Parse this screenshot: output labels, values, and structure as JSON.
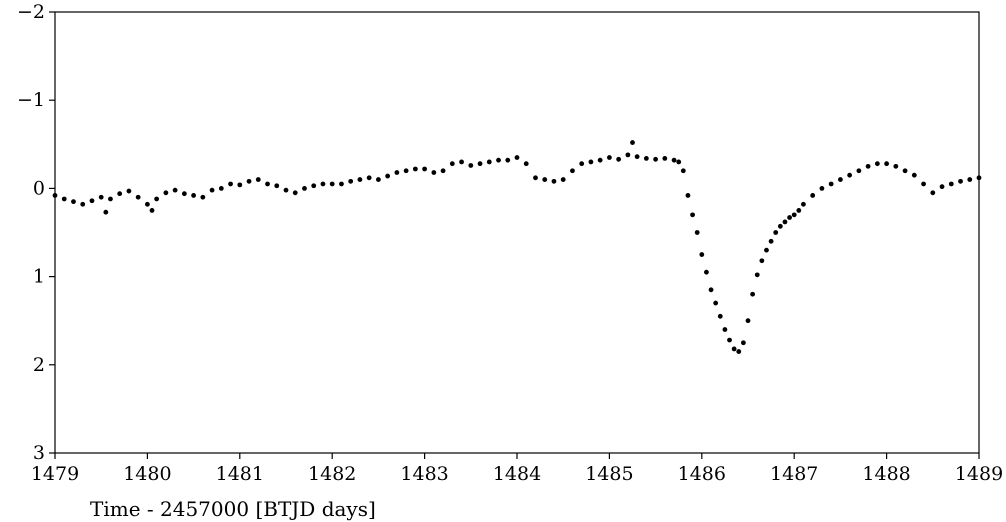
{
  "chart_data": {
    "type": "scatter",
    "title": "",
    "xlabel": "Time - 2457000 [BTJD days]",
    "ylabel": "",
    "xlim": [
      1479,
      1489
    ],
    "ylim": [
      3,
      -2
    ],
    "y_inverted": true,
    "grid": false,
    "legend": "none",
    "marker_color": "#000000",
    "x_ticks": [
      1479,
      1480,
      1481,
      1482,
      1483,
      1484,
      1485,
      1486,
      1487,
      1488,
      1489
    ],
    "x_tick_labels": [
      "1479",
      "1480",
      "1481",
      "1482",
      "1483",
      "1484",
      "1485",
      "1486",
      "1487",
      "1488",
      "1489"
    ],
    "y_ticks": [
      -2,
      -1,
      0,
      1,
      2,
      3
    ],
    "y_tick_labels": [
      "−2",
      "−1",
      "0",
      "1",
      "2",
      "3"
    ],
    "series": [
      {
        "x": [
          1479.0,
          1479.1,
          1479.2,
          1479.3,
          1479.4,
          1479.5,
          1479.55,
          1479.6,
          1479.7,
          1479.8,
          1479.9,
          1480.0,
          1480.05,
          1480.1,
          1480.2,
          1480.3,
          1480.4,
          1480.5,
          1480.6,
          1480.7,
          1480.8,
          1480.9,
          1481.0,
          1481.1,
          1481.2,
          1481.3,
          1481.4,
          1481.5,
          1481.6,
          1481.7,
          1481.8,
          1481.9,
          1482.0,
          1482.1,
          1482.2,
          1482.3,
          1482.4,
          1482.5,
          1482.6,
          1482.7,
          1482.8,
          1482.9,
          1483.0,
          1483.1,
          1483.2,
          1483.3,
          1483.4,
          1483.5,
          1483.6,
          1483.7,
          1483.8,
          1483.9,
          1484.0,
          1484.1,
          1484.2,
          1484.3,
          1484.4,
          1484.5,
          1484.6,
          1484.7,
          1484.8,
          1484.9,
          1485.0,
          1485.1,
          1485.2,
          1485.25,
          1485.3,
          1485.4,
          1485.5,
          1485.6,
          1485.7,
          1485.75,
          1485.8,
          1485.85,
          1485.9,
          1485.95,
          1486.0,
          1486.05,
          1486.1,
          1486.15,
          1486.2,
          1486.25,
          1486.3,
          1486.35,
          1486.4,
          1486.45,
          1486.5,
          1486.55,
          1486.6,
          1486.65,
          1486.7,
          1486.75,
          1486.8,
          1486.85,
          1486.9,
          1486.95,
          1487.0,
          1487.05,
          1487.1,
          1487.2,
          1487.3,
          1487.4,
          1487.5,
          1487.6,
          1487.7,
          1487.8,
          1487.9,
          1488.0,
          1488.1,
          1488.2,
          1488.3,
          1488.4,
          1488.5,
          1488.6,
          1488.7,
          1488.8,
          1488.9,
          1489.0
        ],
        "y": [
          0.08,
          0.12,
          0.15,
          0.18,
          0.14,
          0.1,
          0.27,
          0.12,
          0.06,
          0.03,
          0.1,
          0.18,
          0.25,
          0.12,
          0.05,
          0.02,
          0.06,
          0.08,
          0.1,
          0.02,
          0.0,
          -0.05,
          -0.04,
          -0.08,
          -0.1,
          -0.05,
          -0.03,
          0.02,
          0.05,
          0.0,
          -0.03,
          -0.05,
          -0.05,
          -0.05,
          -0.08,
          -0.1,
          -0.12,
          -0.1,
          -0.14,
          -0.18,
          -0.2,
          -0.22,
          -0.22,
          -0.18,
          -0.2,
          -0.28,
          -0.3,
          -0.26,
          -0.28,
          -0.3,
          -0.32,
          -0.32,
          -0.35,
          -0.28,
          -0.12,
          -0.1,
          -0.08,
          -0.1,
          -0.2,
          -0.28,
          -0.3,
          -0.32,
          -0.35,
          -0.33,
          -0.38,
          -0.52,
          -0.36,
          -0.34,
          -0.33,
          -0.34,
          -0.32,
          -0.3,
          -0.2,
          0.08,
          0.3,
          0.5,
          0.75,
          0.95,
          1.15,
          1.3,
          1.45,
          1.6,
          1.72,
          1.82,
          1.85,
          1.75,
          1.5,
          1.2,
          0.98,
          0.82,
          0.7,
          0.6,
          0.5,
          0.43,
          0.38,
          0.33,
          0.3,
          0.25,
          0.18,
          0.08,
          0.0,
          -0.05,
          -0.1,
          -0.15,
          -0.2,
          -0.25,
          -0.28,
          -0.28,
          -0.25,
          -0.2,
          -0.15,
          -0.05,
          0.05,
          -0.02,
          -0.05,
          -0.08,
          -0.1,
          -0.12
        ]
      }
    ]
  }
}
